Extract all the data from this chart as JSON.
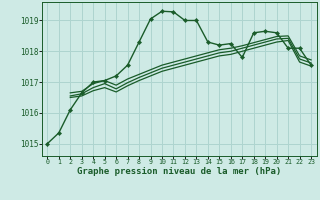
{
  "title": "Graphe pression niveau de la mer (hPa)",
  "background_color": "#ceeae5",
  "grid_color": "#aed4cf",
  "line_color": "#1a5c2a",
  "xlim": [
    -0.5,
    23.5
  ],
  "ylim": [
    1014.6,
    1019.6
  ],
  "yticks": [
    1015,
    1016,
    1017,
    1018,
    1019
  ],
  "xticks": [
    0,
    1,
    2,
    3,
    4,
    5,
    6,
    7,
    8,
    9,
    10,
    11,
    12,
    13,
    14,
    15,
    16,
    17,
    18,
    19,
    20,
    21,
    22,
    23
  ],
  "series": [
    {
      "x": [
        0,
        1,
        2,
        3,
        4,
        5,
        6,
        7,
        8,
        9,
        10,
        11,
        12,
        13,
        14,
        15,
        16,
        17,
        18,
        19,
        20,
        21,
        22,
        23
      ],
      "y": [
        1015.0,
        1015.35,
        1016.1,
        1016.65,
        1017.0,
        1017.05,
        1017.2,
        1017.55,
        1018.3,
        1019.05,
        1019.3,
        1019.28,
        1019.0,
        1019.0,
        1018.3,
        1018.2,
        1018.25,
        1017.8,
        1018.6,
        1018.65,
        1018.6,
        1018.1,
        1018.1,
        1017.55
      ],
      "marker": "D",
      "markersize": 2.2,
      "linewidth": 1.0,
      "zorder": 5
    },
    {
      "x": [
        2,
        3,
        4,
        5,
        6,
        7,
        8,
        9,
        10,
        11,
        12,
        13,
        14,
        15,
        16,
        17,
        18,
        19,
        20,
        21,
        22,
        23
      ],
      "y": [
        1016.65,
        1016.7,
        1016.95,
        1017.05,
        1016.9,
        1017.1,
        1017.25,
        1017.4,
        1017.55,
        1017.65,
        1017.75,
        1017.85,
        1017.95,
        1018.05,
        1018.1,
        1018.18,
        1018.28,
        1018.38,
        1018.48,
        1018.5,
        1017.85,
        1017.72
      ],
      "marker": null,
      "linewidth": 0.9,
      "zorder": 3
    },
    {
      "x": [
        2,
        3,
        4,
        5,
        6,
        7,
        8,
        9,
        10,
        11,
        12,
        13,
        14,
        15,
        16,
        17,
        18,
        19,
        20,
        21,
        22,
        23
      ],
      "y": [
        1016.55,
        1016.62,
        1016.82,
        1016.95,
        1016.78,
        1016.98,
        1017.15,
        1017.3,
        1017.45,
        1017.55,
        1017.65,
        1017.75,
        1017.85,
        1017.95,
        1018.0,
        1018.1,
        1018.2,
        1018.3,
        1018.4,
        1018.42,
        1017.75,
        1017.62
      ],
      "marker": null,
      "linewidth": 0.9,
      "zorder": 3
    },
    {
      "x": [
        2,
        3,
        4,
        5,
        6,
        7,
        8,
        9,
        10,
        11,
        12,
        13,
        14,
        15,
        16,
        17,
        18,
        19,
        20,
        21,
        22,
        23
      ],
      "y": [
        1016.5,
        1016.55,
        1016.72,
        1016.82,
        1016.68,
        1016.88,
        1017.05,
        1017.2,
        1017.35,
        1017.45,
        1017.55,
        1017.65,
        1017.75,
        1017.85,
        1017.9,
        1018.0,
        1018.1,
        1018.2,
        1018.3,
        1018.35,
        1017.65,
        1017.52
      ],
      "marker": null,
      "linewidth": 0.9,
      "zorder": 3
    }
  ]
}
